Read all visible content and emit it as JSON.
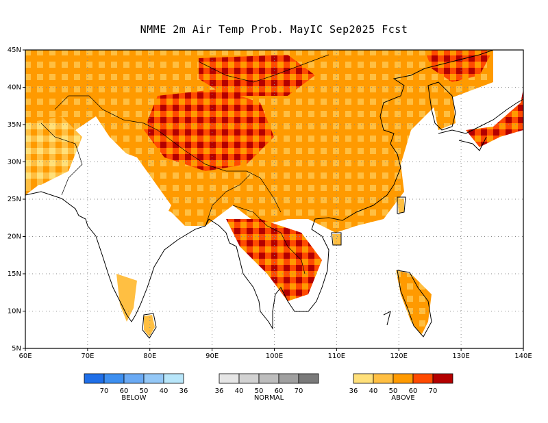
{
  "title": "NMME 2m Air Temp Prob. MayIC  Sep2025 Fcst",
  "map": {
    "lon_range": [
      60,
      140
    ],
    "lat_range": [
      5,
      45
    ],
    "lon_ticks": [
      "60E",
      "70E",
      "80E",
      "90E",
      "100E",
      "110E",
      "120E",
      "130E",
      "140E"
    ],
    "lat_ticks": [
      "45N",
      "40N",
      "35N",
      "30N",
      "25N",
      "20N",
      "15N",
      "10N",
      "5N"
    ],
    "gridlines": "dotted"
  },
  "legend": {
    "below": {
      "label": "BELOW",
      "colors": [
        "#1f6fe8",
        "#3d8ff0",
        "#6aaaf4",
        "#94c8f7",
        "#b8e6fa"
      ],
      "ticks": [
        "70",
        "60",
        "50",
        "40",
        "36"
      ]
    },
    "normal": {
      "label": "NORMAL",
      "colors": [
        "#e6e6e6",
        "#d2d2d2",
        "#bdbdbd",
        "#a0a0a0",
        "#7a7a7a"
      ],
      "ticks": [
        "36",
        "40",
        "50",
        "60",
        "70"
      ]
    },
    "above": {
      "label": "ABOVE",
      "colors": [
        "#ffe07a",
        "#ffbf42",
        "#ff9a00",
        "#ff4a00",
        "#b40000"
      ],
      "ticks": [
        "36",
        "40",
        "50",
        "60",
        "70"
      ]
    }
  }
}
